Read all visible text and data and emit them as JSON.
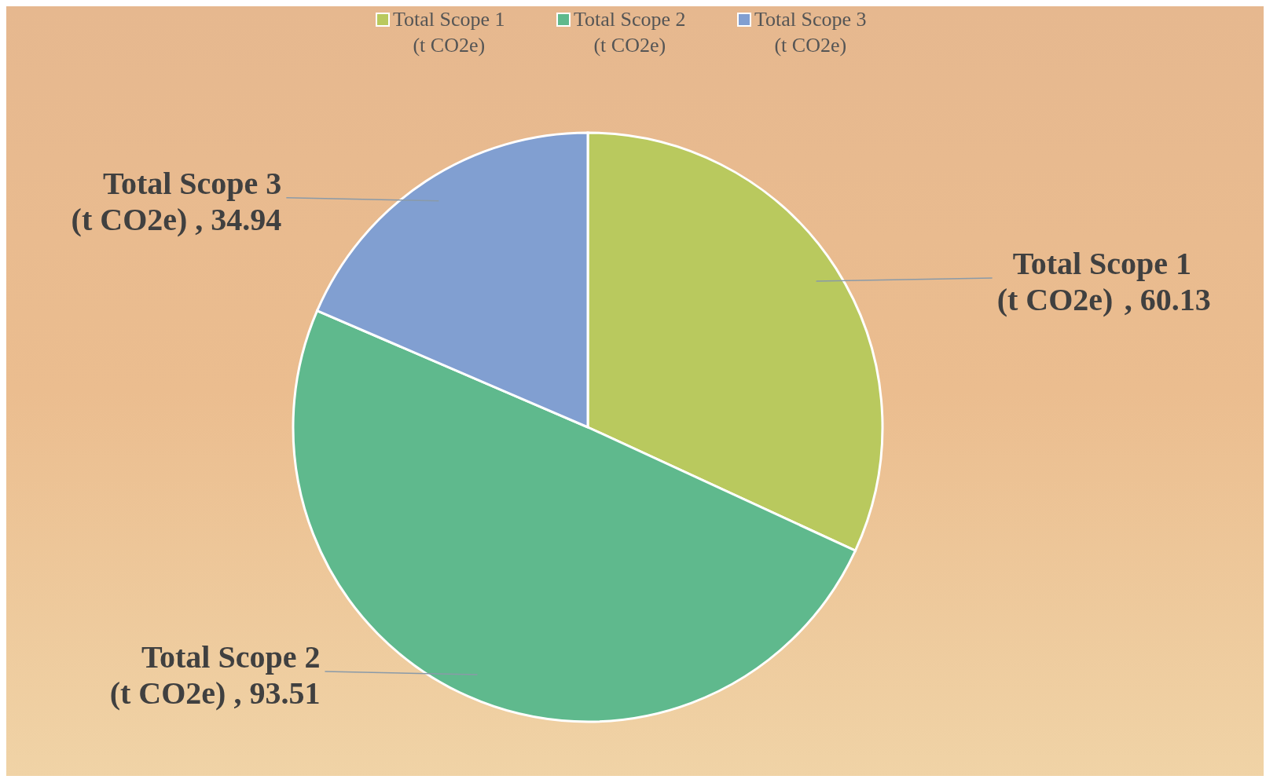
{
  "chart_data": {
    "type": "pie",
    "categories": [
      "Total Scope 1 (t CO2e)",
      "Total Scope 2 (t CO2e)",
      "Total Scope 3 (t CO2e)"
    ],
    "values": [
      60.13,
      93.51,
      34.94
    ],
    "colors": [
      "#b9c95e",
      "#5fb98d",
      "#819fd1"
    ],
    "value_labels": [
      ", 60.13",
      ", 93.51",
      ", 34.94"
    ],
    "legend": "top"
  }
}
